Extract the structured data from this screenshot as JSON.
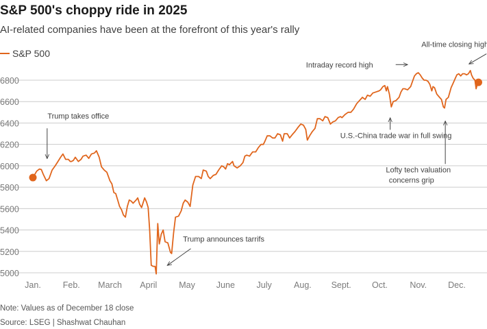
{
  "title": "S&P 500's choppy ride in 2025",
  "subtitle": "AI-related companies have been at the forefront of this year's rally",
  "note": "Note: Values as of December 18 close",
  "source": "Source: LSEG | Shashwat Chauhan",
  "colors": {
    "line": "#e0651c",
    "grid": "#cccccc",
    "text": "#595959",
    "annotation": "#404040"
  },
  "chart_data": {
    "type": "line",
    "series": [
      {
        "name": "S&P 500",
        "points": [
          [
            1.0,
            5890
          ],
          [
            1.05,
            5920
          ],
          [
            1.1,
            5950
          ],
          [
            1.17,
            5970
          ],
          [
            1.22,
            5965
          ],
          [
            1.27,
            5920
          ],
          [
            1.35,
            5860
          ],
          [
            1.42,
            5880
          ],
          [
            1.5,
            5960
          ],
          [
            1.58,
            6000
          ],
          [
            1.65,
            6040
          ],
          [
            1.72,
            6080
          ],
          [
            1.78,
            6110
          ],
          [
            1.85,
            6060
          ],
          [
            1.92,
            6060
          ],
          [
            1.97,
            6040
          ],
          [
            2.0,
            6040
          ],
          [
            2.05,
            6050
          ],
          [
            2.1,
            6080
          ],
          [
            2.18,
            6040
          ],
          [
            2.25,
            6060
          ],
          [
            2.3,
            6090
          ],
          [
            2.38,
            6100
          ],
          [
            2.45,
            6070
          ],
          [
            2.52,
            6110
          ],
          [
            2.6,
            6120
          ],
          [
            2.65,
            6140
          ],
          [
            2.72,
            6080
          ],
          [
            2.78,
            5990
          ],
          [
            2.85,
            5960
          ],
          [
            2.92,
            5940
          ],
          [
            3.0,
            5860
          ],
          [
            3.05,
            5830
          ],
          [
            3.1,
            5750
          ],
          [
            3.15,
            5740
          ],
          [
            3.2,
            5680
          ],
          [
            3.25,
            5620
          ],
          [
            3.3,
            5590
          ],
          [
            3.35,
            5540
          ],
          [
            3.4,
            5520
          ],
          [
            3.45,
            5620
          ],
          [
            3.5,
            5680
          ],
          [
            3.55,
            5670
          ],
          [
            3.6,
            5650
          ],
          [
            3.68,
            5680
          ],
          [
            3.72,
            5700
          ],
          [
            3.77,
            5640
          ],
          [
            3.82,
            5610
          ],
          [
            3.9,
            5700
          ],
          [
            3.95,
            5660
          ],
          [
            3.99,
            5610
          ],
          [
            4.03,
            5400
          ],
          [
            4.07,
            5070
          ],
          [
            4.12,
            5060
          ],
          [
            4.17,
            5060
          ],
          [
            4.2,
            4990
          ],
          [
            4.24,
            5460
          ],
          [
            4.28,
            5270
          ],
          [
            4.33,
            5360
          ],
          [
            4.38,
            5400
          ],
          [
            4.43,
            5290
          ],
          [
            4.5,
            5280
          ],
          [
            4.57,
            5190
          ],
          [
            4.6,
            5180
          ],
          [
            4.65,
            5370
          ],
          [
            4.7,
            5520
          ],
          [
            4.78,
            5530
          ],
          [
            4.85,
            5580
          ],
          [
            4.9,
            5650
          ],
          [
            4.95,
            5680
          ],
          [
            5.02,
            5660
          ],
          [
            5.08,
            5620
          ],
          [
            5.15,
            5820
          ],
          [
            5.22,
            5900
          ],
          [
            5.3,
            5900
          ],
          [
            5.37,
            5880
          ],
          [
            5.42,
            5960
          ],
          [
            5.5,
            5950
          ],
          [
            5.55,
            5900
          ],
          [
            5.6,
            5880
          ],
          [
            5.68,
            5910
          ],
          [
            5.75,
            5920
          ],
          [
            5.82,
            5960
          ],
          [
            5.9,
            6000
          ],
          [
            5.95,
            5990
          ],
          [
            6.0,
            5970
          ],
          [
            6.05,
            6020
          ],
          [
            6.1,
            6010
          ],
          [
            6.18,
            6040
          ],
          [
            6.22,
            6000
          ],
          [
            6.3,
            5980
          ],
          [
            6.38,
            6000
          ],
          [
            6.45,
            6030
          ],
          [
            6.5,
            6090
          ],
          [
            6.55,
            6100
          ],
          [
            6.62,
            6090
          ],
          [
            6.7,
            6130
          ],
          [
            6.78,
            6130
          ],
          [
            6.85,
            6170
          ],
          [
            6.92,
            6200
          ],
          [
            6.98,
            6200
          ],
          [
            7.02,
            6230
          ],
          [
            7.08,
            6280
          ],
          [
            7.15,
            6280
          ],
          [
            7.22,
            6260
          ],
          [
            7.28,
            6260
          ],
          [
            7.35,
            6300
          ],
          [
            7.42,
            6290
          ],
          [
            7.48,
            6230
          ],
          [
            7.52,
            6300
          ],
          [
            7.6,
            6300
          ],
          [
            7.66,
            6260
          ],
          [
            7.75,
            6300
          ],
          [
            7.8,
            6320
          ],
          [
            7.88,
            6360
          ],
          [
            7.95,
            6390
          ],
          [
            8.02,
            6380
          ],
          [
            8.08,
            6340
          ],
          [
            8.12,
            6240
          ],
          [
            8.18,
            6280
          ],
          [
            8.25,
            6320
          ],
          [
            8.32,
            6350
          ],
          [
            8.38,
            6440
          ],
          [
            8.45,
            6440
          ],
          [
            8.52,
            6420
          ],
          [
            8.58,
            6460
          ],
          [
            8.65,
            6450
          ],
          [
            8.72,
            6390
          ],
          [
            8.78,
            6410
          ],
          [
            8.85,
            6420
          ],
          [
            8.92,
            6450
          ],
          [
            8.98,
            6460
          ],
          [
            9.02,
            6450
          ],
          [
            9.1,
            6480
          ],
          [
            9.18,
            6500
          ],
          [
            9.25,
            6500
          ],
          [
            9.32,
            6530
          ],
          [
            9.4,
            6580
          ],
          [
            9.45,
            6600
          ],
          [
            9.5,
            6620
          ],
          [
            9.55,
            6640
          ],
          [
            9.62,
            6620
          ],
          [
            9.68,
            6660
          ],
          [
            9.75,
            6650
          ],
          [
            9.82,
            6680
          ],
          [
            9.9,
            6690
          ],
          [
            9.98,
            6700
          ],
          [
            10.02,
            6710
          ],
          [
            10.08,
            6740
          ],
          [
            10.13,
            6750
          ],
          [
            10.17,
            6700
          ],
          [
            10.2,
            6740
          ],
          [
            10.25,
            6670
          ],
          [
            10.3,
            6550
          ],
          [
            10.35,
            6600
          ],
          [
            10.42,
            6610
          ],
          [
            10.5,
            6640
          ],
          [
            10.55,
            6690
          ],
          [
            10.6,
            6720
          ],
          [
            10.65,
            6720
          ],
          [
            10.72,
            6710
          ],
          [
            10.8,
            6740
          ],
          [
            10.85,
            6790
          ],
          [
            10.9,
            6840
          ],
          [
            10.95,
            6860
          ],
          [
            11.0,
            6870
          ],
          [
            11.05,
            6850
          ],
          [
            11.1,
            6820
          ],
          [
            11.15,
            6800
          ],
          [
            11.2,
            6800
          ],
          [
            11.25,
            6790
          ],
          [
            11.3,
            6760
          ],
          [
            11.35,
            6700
          ],
          [
            11.38,
            6740
          ],
          [
            11.42,
            6730
          ],
          [
            11.48,
            6670
          ],
          [
            11.55,
            6640
          ],
          [
            11.6,
            6620
          ],
          [
            11.65,
            6550
          ],
          [
            11.68,
            6540
          ],
          [
            11.72,
            6620
          ],
          [
            11.78,
            6640
          ],
          [
            11.85,
            6730
          ],
          [
            11.9,
            6770
          ],
          [
            11.95,
            6810
          ],
          [
            12.0,
            6850
          ],
          [
            12.05,
            6860
          ],
          [
            12.1,
            6840
          ],
          [
            12.15,
            6860
          ],
          [
            12.2,
            6860
          ],
          [
            12.25,
            6850
          ],
          [
            12.3,
            6860
          ],
          [
            12.35,
            6890
          ],
          [
            12.38,
            6850
          ],
          [
            12.42,
            6820
          ],
          [
            12.47,
            6800
          ],
          [
            12.5,
            6720
          ],
          [
            12.53,
            6760
          ],
          [
            12.56,
            6780
          ]
        ]
      }
    ],
    "x_ticks": [
      {
        "label": "Jan.",
        "x": 1
      },
      {
        "label": "Feb.",
        "x": 2
      },
      {
        "label": "March",
        "x": 3
      },
      {
        "label": "April",
        "x": 4
      },
      {
        "label": "May",
        "x": 5
      },
      {
        "label": "June",
        "x": 6
      },
      {
        "label": "July",
        "x": 7
      },
      {
        "label": "Aug.",
        "x": 8
      },
      {
        "label": "Sept.",
        "x": 9
      },
      {
        "label": "Oct.",
        "x": 10
      },
      {
        "label": "Nov.",
        "x": 11
      },
      {
        "label": "Dec.",
        "x": 12
      }
    ],
    "y_ticks": [
      5000,
      5200,
      5400,
      5600,
      5800,
      6000,
      6200,
      6400,
      6600,
      6800
    ],
    "xlim": [
      1,
      12.7
    ],
    "ylim": [
      5000,
      6800
    ],
    "grid": true,
    "legend": "top-left",
    "start_marker": [
      1.0,
      5890
    ],
    "end_marker": [
      12.56,
      6780
    ],
    "annotations": [
      {
        "text": "Trump takes office",
        "anchor": [
          1.37,
          5990
        ],
        "label_at": [
          1.36,
          6440
        ],
        "arrow": "down"
      },
      {
        "text": "Trump announces tarrifs",
        "anchor": [
          4.38,
          5030
        ],
        "label_at": [
          5.95,
          5290
        ],
        "arrow": "left"
      },
      {
        "text": "Intraday record high",
        "anchor": [
          10.9,
          6890
        ],
        "label_at": [
          9.88,
          6920
        ],
        "arrow": "right"
      },
      {
        "text": "All-time closing high",
        "anchor": [
          12.35,
          6900
        ],
        "label_at": [
          11.95,
          7110
        ],
        "arrow": "down-right"
      },
      {
        "text": "U.S.-China trade war in full swing",
        "anchor": [
          10.27,
          6500
        ],
        "label_at": [
          10.42,
          6260
        ],
        "arrow": "up"
      },
      {
        "text": "Lofty tech valuation",
        "text2": "concerns grip",
        "anchor": [
          11.7,
          6470
        ],
        "label_at": [
          11.0,
          5940
        ],
        "arrow": "up"
      }
    ]
  },
  "legend_label": "S&P 500"
}
